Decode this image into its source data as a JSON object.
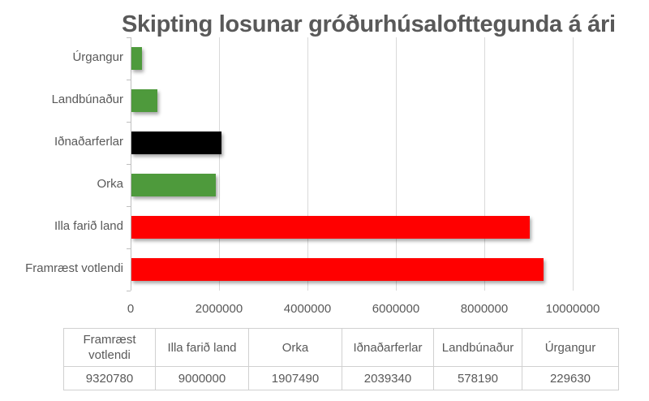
{
  "chart_data": {
    "type": "bar",
    "orientation": "horizontal",
    "title": "Skipting losunar gróðurhúsalofttegunda á ári",
    "xlabel": "",
    "ylabel": "",
    "categories": [
      "Úrgangur",
      "Landbúnaður",
      "Iðnaðarferlar",
      "Orka",
      "Illa farið land",
      "Framræst votlendi"
    ],
    "values": [
      229630,
      578190,
      2039340,
      1907490,
      9000000,
      9320780
    ],
    "colors": [
      "#4e9a3c",
      "#4e9a3c",
      "#000000",
      "#4e9a3c",
      "#ff0000",
      "#ff0000"
    ],
    "xlim": [
      0,
      10000000
    ],
    "x_ticks": [
      "0",
      "2000000",
      "4000000",
      "6000000",
      "8000000",
      "10000000"
    ],
    "grid": "vertical",
    "legend": "none",
    "data_table": {
      "headers": [
        "Framræst votlendi",
        "Illa farið land",
        "Orka",
        "Iðnaðarferlar",
        "Landbúnaður",
        "Úrgangur"
      ],
      "values": [
        "9320780",
        "9000000",
        "1907490",
        "2039340",
        "578190",
        "229630"
      ]
    }
  },
  "title": "Skipting losunar gróðurhúsalofttegunda á ári",
  "bars": [
    {
      "label": "Úrgangur",
      "value": 229630,
      "color": "#4e9a3c"
    },
    {
      "label": "Landbúnaður",
      "value": 578190,
      "color": "#4e9a3c"
    },
    {
      "label": "Iðnaðarferlar",
      "value": 2039340,
      "color": "#000000"
    },
    {
      "label": "Orka",
      "value": 1907490,
      "color": "#4e9a3c"
    },
    {
      "label": "Illa farið land",
      "value": 9000000,
      "color": "#ff0000"
    },
    {
      "label": "Framræst votlendi",
      "value": 9320780,
      "color": "#ff0000"
    }
  ],
  "x_ticks": [
    "0",
    "2000000",
    "4000000",
    "6000000",
    "8000000",
    "10000000"
  ],
  "table": {
    "headers": [
      "Framræst votlendi",
      "Illa farið land",
      "Orka",
      "Iðnaðarferlar",
      "Landbúnaður",
      "Úrgangur"
    ],
    "values": [
      "9320780",
      "9000000",
      "1907490",
      "2039340",
      "578190",
      "229630"
    ]
  }
}
